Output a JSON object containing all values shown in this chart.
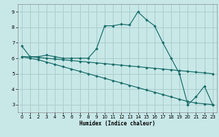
{
  "xlabel": "Humidex (Indice chaleur)",
  "xlim": [
    -0.5,
    23.5
  ],
  "ylim": [
    2.5,
    9.5
  ],
  "xticks": [
    0,
    1,
    2,
    3,
    4,
    5,
    6,
    7,
    8,
    9,
    10,
    11,
    12,
    13,
    14,
    15,
    16,
    17,
    18,
    19,
    20,
    21,
    22,
    23
  ],
  "yticks": [
    3,
    4,
    5,
    6,
    7,
    8,
    9
  ],
  "background_color": "#c8e8e8",
  "grid_color": "#aacccc",
  "line_color": "#1a6e6a",
  "lines": [
    {
      "x": [
        0,
        1,
        2,
        3,
        4,
        5,
        6,
        7,
        8,
        9,
        10,
        11,
        12,
        13,
        14,
        15,
        16,
        17,
        18,
        19,
        20,
        21,
        22,
        23
      ],
      "y": [
        6.8,
        6.1,
        6.1,
        6.2,
        6.1,
        6.0,
        6.0,
        6.0,
        6.0,
        6.6,
        8.1,
        8.1,
        8.2,
        8.15,
        9.0,
        8.5,
        8.1,
        7.0,
        6.0,
        5.0,
        3.0,
        3.5,
        4.2,
        3.0
      ]
    },
    {
      "x": [
        0,
        1,
        2,
        3,
        4,
        5,
        6,
        7,
        8,
        9,
        10,
        11,
        12,
        13,
        14,
        15,
        16,
        17,
        18,
        19,
        20,
        21,
        22,
        23
      ],
      "y": [
        6.1,
        6.1,
        6.05,
        6.0,
        5.95,
        5.9,
        5.85,
        5.8,
        5.75,
        5.7,
        5.65,
        5.6,
        5.55,
        5.5,
        5.45,
        5.4,
        5.35,
        5.3,
        5.25,
        5.2,
        5.15,
        5.1,
        5.05,
        5.0
      ]
    },
    {
      "x": [
        0,
        1,
        2,
        3,
        4,
        5,
        6,
        7,
        8,
        9,
        10,
        11,
        12,
        13,
        14,
        15,
        16,
        17,
        18,
        19,
        20,
        21,
        22,
        23
      ],
      "y": [
        6.1,
        6.0,
        5.9,
        5.75,
        5.6,
        5.45,
        5.3,
        5.15,
        5.0,
        4.85,
        4.7,
        4.55,
        4.4,
        4.25,
        4.1,
        3.95,
        3.8,
        3.65,
        3.5,
        3.35,
        3.2,
        3.1,
        3.05,
        3.0
      ]
    }
  ]
}
